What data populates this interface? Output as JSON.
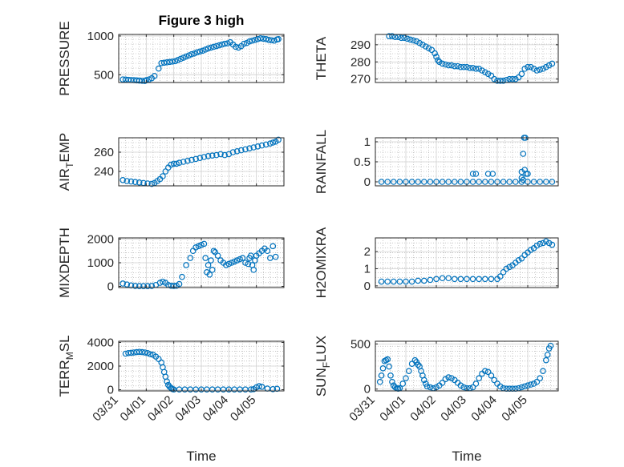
{
  "figure": {
    "title": "Figure 3 high"
  },
  "colors": {
    "marker": "#0072BD",
    "axis": "#262626",
    "grid": "#a6a6a6"
  },
  "x_ticks": [
    "03/31",
    "04/01",
    "04/02",
    "04/03",
    "04/04",
    "04/05"
  ],
  "chart_data": [
    {
      "type": "scatter",
      "panel": "pressure",
      "title": "Figure 3 high",
      "ylabel": "PRESSURE",
      "xlabel": "",
      "ylim": [
        400,
        1020
      ],
      "yticks": [
        500,
        1000
      ],
      "ytick_labels": [
        "500",
        "1000"
      ],
      "x": [
        0.15,
        0.25,
        0.35,
        0.45,
        0.55,
        0.65,
        0.75,
        0.85,
        0.95,
        1.0,
        1.1,
        1.2,
        1.3,
        1.45,
        1.55,
        1.65,
        1.75,
        1.85,
        1.95,
        2.05,
        2.15,
        2.25,
        2.35,
        2.45,
        2.55,
        2.65,
        2.75,
        2.85,
        2.95,
        3.05,
        3.15,
        3.25,
        3.35,
        3.45,
        3.55,
        3.65,
        3.75,
        3.85,
        3.95,
        4.05,
        4.15,
        4.25,
        4.35,
        4.45,
        4.55,
        4.65,
        4.75,
        4.85,
        4.95,
        5.05,
        5.15,
        5.25,
        5.35,
        5.45,
        5.55,
        5.65,
        5.75,
        5.8
      ],
      "y": [
        440,
        438,
        435,
        432,
        430,
        428,
        425,
        422,
        420,
        430,
        440,
        455,
        485,
        580,
        650,
        655,
        660,
        665,
        670,
        675,
        690,
        705,
        720,
        735,
        750,
        765,
        775,
        790,
        800,
        810,
        825,
        840,
        850,
        860,
        870,
        880,
        890,
        900,
        905,
        920,
        890,
        860,
        850,
        870,
        900,
        910,
        930,
        940,
        950,
        960,
        970,
        965,
        960,
        950,
        945,
        940,
        955,
        960
      ],
      "series": [
        {
          "name": "PRESSURE",
          "values": []
        }
      ],
      "grid": true
    },
    {
      "type": "scatter",
      "panel": "theta",
      "ylabel": "THETA",
      "xlabel": "",
      "ylim": [
        268,
        296
      ],
      "yticks": [
        270,
        280,
        290
      ],
      "ytick_labels": [
        "270",
        "280",
        "290"
      ],
      "x": [
        0.45,
        0.55,
        0.65,
        0.75,
        0.85,
        0.95,
        1.05,
        1.15,
        1.25,
        1.35,
        1.45,
        1.55,
        1.65,
        1.75,
        1.85,
        1.95,
        2.0,
        2.05,
        2.1,
        2.2,
        2.3,
        2.4,
        2.5,
        2.6,
        2.7,
        2.8,
        2.9,
        3.0,
        3.1,
        3.2,
        3.3,
        3.4,
        3.5,
        3.6,
        3.7,
        3.8,
        3.9,
        4.0,
        4.1,
        4.2,
        4.3,
        4.4,
        4.5,
        4.6,
        4.7,
        4.8,
        4.9,
        5.0,
        5.1,
        5.2,
        5.3,
        5.4,
        5.5,
        5.6,
        5.7,
        5.8
      ],
      "y": [
        295,
        295,
        294.5,
        294.5,
        294,
        294,
        293.5,
        293,
        292.5,
        292,
        291,
        290,
        289,
        288,
        287,
        285,
        283,
        281,
        280,
        279,
        278.5,
        278,
        278,
        277.5,
        277.5,
        277,
        277,
        277,
        276.5,
        276.5,
        276,
        276,
        275,
        274,
        273,
        272,
        270,
        269,
        269,
        269,
        269.5,
        270,
        270,
        270,
        271,
        273,
        276,
        277,
        277,
        276,
        275,
        275.5,
        276,
        277,
        278,
        279
      ],
      "grid": true
    },
    {
      "type": "scatter",
      "panel": "air_temp",
      "ylabel": "AIR_TEMP",
      "ylabel_display": {
        "main": "AIR",
        "sub": "T",
        "rest": "EMP"
      },
      "xlabel": "",
      "ylim": [
        225,
        275
      ],
      "yticks": [
        240,
        260
      ],
      "ytick_labels": [
        "240",
        "260"
      ],
      "x": [
        0.15,
        0.3,
        0.45,
        0.6,
        0.75,
        0.9,
        1.05,
        1.2,
        1.3,
        1.4,
        1.5,
        1.6,
        1.7,
        1.8,
        1.9,
        2.0,
        2.1,
        2.2,
        2.35,
        2.5,
        2.65,
        2.8,
        2.95,
        3.1,
        3.25,
        3.4,
        3.55,
        3.7,
        3.85,
        4.0,
        4.15,
        4.3,
        4.45,
        4.6,
        4.75,
        4.9,
        5.05,
        5.2,
        5.35,
        5.5,
        5.6,
        5.7,
        5.8
      ],
      "y": [
        231,
        230,
        229.5,
        229,
        228.5,
        228,
        227.5,
        227,
        228,
        230,
        232,
        235,
        240,
        244,
        247,
        248,
        248,
        249,
        250,
        251,
        252,
        253,
        254,
        255,
        256,
        256.5,
        257,
        258,
        257,
        258,
        260,
        261,
        262,
        263,
        264,
        265,
        266,
        267,
        268,
        269,
        270,
        271,
        273
      ],
      "grid": true
    },
    {
      "type": "scatter",
      "panel": "rainfall",
      "ylabel": "RAINFALL",
      "xlabel": "",
      "ylim": [
        -0.1,
        1.1
      ],
      "yticks": [
        0,
        0.5,
        1
      ],
      "ytick_labels": [
        "0",
        "0.5",
        "1"
      ],
      "x": [
        0.2,
        0.4,
        0.6,
        0.8,
        1.0,
        1.2,
        1.4,
        1.6,
        1.8,
        2.0,
        2.2,
        2.4,
        2.6,
        2.8,
        3.0,
        3.2,
        3.4,
        3.6,
        3.8,
        4.0,
        4.2,
        4.4,
        4.6,
        4.8,
        5.0,
        5.2,
        5.4,
        5.6,
        5.8,
        3.2,
        3.3,
        3.7,
        3.85,
        4.8,
        4.9,
        4.85,
        4.92,
        4.88,
        4.95,
        5.0,
        4.8,
        4.85
      ],
      "y": [
        0,
        0,
        0,
        0,
        0,
        0,
        0,
        0,
        0,
        0,
        0,
        0,
        0,
        0,
        0,
        0,
        0,
        0,
        0,
        0,
        0,
        0,
        0,
        0,
        0,
        0,
        0,
        0,
        0,
        0.2,
        0.2,
        0.2,
        0.2,
        0.25,
        0.3,
        0.7,
        1.1,
        1.1,
        0.2,
        0.2,
        0.1,
        0.05
      ],
      "grid": true
    },
    {
      "type": "scatter",
      "panel": "mixdepth",
      "ylabel": "MIXDEPTH",
      "xlabel": "",
      "ylim": [
        -50,
        2050
      ],
      "yticks": [
        0,
        1000,
        2000
      ],
      "ytick_labels": [
        "0",
        "1000",
        "2000"
      ],
      "x": [
        0.15,
        0.3,
        0.45,
        0.6,
        0.75,
        0.9,
        1.05,
        1.2,
        1.35,
        1.5,
        1.6,
        1.7,
        1.8,
        1.9,
        2.0,
        2.1,
        2.2,
        2.3,
        2.45,
        2.6,
        2.7,
        2.8,
        2.9,
        3.0,
        3.1,
        3.15,
        3.2,
        3.25,
        3.3,
        3.35,
        3.4,
        3.45,
        3.5,
        3.6,
        3.7,
        3.8,
        3.9,
        4.0,
        4.1,
        4.2,
        4.3,
        4.4,
        4.5,
        4.6,
        4.7,
        4.75,
        4.8,
        4.85,
        4.9,
        4.95,
        5.0,
        5.1,
        5.2,
        5.3,
        5.4,
        5.5,
        5.6,
        5.7
      ],
      "y": [
        120,
        80,
        40,
        20,
        10,
        10,
        10,
        20,
        60,
        150,
        200,
        150,
        60,
        30,
        20,
        30,
        100,
        400,
        900,
        1200,
        1500,
        1650,
        1700,
        1750,
        1800,
        1200,
        600,
        900,
        500,
        1100,
        700,
        1500,
        1450,
        1300,
        1100,
        1000,
        900,
        950,
        1000,
        1050,
        1100,
        1150,
        1200,
        1000,
        950,
        1200,
        1300,
        900,
        700,
        1100,
        1300,
        1400,
        1500,
        1600,
        1500,
        1200,
        1700,
        1250
      ],
      "grid": true
    },
    {
      "type": "scatter",
      "panel": "h2omixra",
      "ylabel": "H2OMIXRA",
      "xlabel": "",
      "ylim": [
        -0.1,
        2.8
      ],
      "yticks": [
        0,
        1,
        2
      ],
      "ytick_labels": [
        "0",
        "1",
        "2"
      ],
      "x": [
        0.2,
        0.4,
        0.6,
        0.8,
        1.0,
        1.2,
        1.4,
        1.6,
        1.8,
        2.0,
        2.2,
        2.4,
        2.6,
        2.8,
        3.0,
        3.2,
        3.4,
        3.6,
        3.8,
        4.0,
        4.1,
        4.2,
        4.3,
        4.4,
        4.5,
        4.6,
        4.7,
        4.8,
        4.9,
        5.0,
        5.1,
        5.2,
        5.3,
        5.4,
        5.5,
        5.6,
        5.7,
        5.8
      ],
      "y": [
        0.25,
        0.25,
        0.25,
        0.25,
        0.25,
        0.25,
        0.3,
        0.3,
        0.35,
        0.4,
        0.45,
        0.45,
        0.4,
        0.4,
        0.4,
        0.4,
        0.4,
        0.4,
        0.4,
        0.4,
        0.55,
        0.8,
        1.0,
        1.1,
        1.2,
        1.35,
        1.5,
        1.6,
        1.8,
        1.95,
        2.1,
        2.2,
        2.35,
        2.45,
        2.5,
        2.6,
        2.5,
        2.4
      ],
      "grid": true
    },
    {
      "type": "scatter",
      "panel": "terr_msl",
      "ylabel": "TERR_MSL",
      "ylabel_display": {
        "main": "TERR",
        "sub": "M",
        "rest": "SL"
      },
      "xlabel": "Time",
      "ylim": [
        -100,
        4100
      ],
      "yticks": [
        0,
        2000,
        4000
      ],
      "ytick_labels": [
        "0",
        "2000",
        "4000"
      ],
      "xtick_labels": [
        "03/31",
        "04/01",
        "04/02",
        "04/03",
        "04/04",
        "04/05"
      ],
      "x": [
        0.25,
        0.35,
        0.45,
        0.55,
        0.65,
        0.75,
        0.85,
        0.95,
        1.05,
        1.15,
        1.25,
        1.35,
        1.45,
        1.55,
        1.6,
        1.65,
        1.7,
        1.75,
        1.8,
        1.85,
        1.9,
        1.95,
        2.0,
        2.2,
        2.4,
        2.6,
        2.8,
        3.0,
        3.2,
        3.4,
        3.6,
        3.8,
        4.0,
        4.2,
        4.4,
        4.6,
        4.8,
        4.9,
        5.0,
        5.1,
        5.2,
        5.4,
        5.6,
        5.75
      ],
      "y": [
        3050,
        3100,
        3120,
        3150,
        3180,
        3200,
        3180,
        3150,
        3100,
        3000,
        2950,
        2800,
        2600,
        2300,
        1900,
        1500,
        1100,
        700,
        400,
        250,
        150,
        60,
        20,
        20,
        20,
        20,
        20,
        20,
        20,
        20,
        20,
        20,
        20,
        20,
        20,
        20,
        20,
        50,
        200,
        300,
        250,
        100,
        50,
        80
      ],
      "grid": true
    },
    {
      "type": "scatter",
      "panel": "sun_flux",
      "ylabel": "SUN_FLUX",
      "ylabel_display": {
        "main": "SUN",
        "sub": "F",
        "rest": "LUX"
      },
      "xlabel": "Time",
      "ylim": [
        -20,
        530
      ],
      "yticks": [
        0,
        500
      ],
      "ytick_labels": [
        "0",
        "500"
      ],
      "xtick_labels": [
        "03/31",
        "04/01",
        "04/02",
        "04/03",
        "04/04",
        "04/05"
      ],
      "x": [
        0.15,
        0.2,
        0.25,
        0.3,
        0.35,
        0.4,
        0.45,
        0.5,
        0.55,
        0.6,
        0.65,
        0.7,
        0.75,
        0.8,
        0.9,
        1.0,
        1.1,
        1.2,
        1.3,
        1.35,
        1.4,
        1.45,
        1.5,
        1.55,
        1.6,
        1.65,
        1.7,
        1.8,
        1.9,
        2.0,
        2.1,
        2.2,
        2.3,
        2.4,
        2.5,
        2.6,
        2.7,
        2.8,
        2.9,
        3.0,
        3.1,
        3.2,
        3.3,
        3.4,
        3.5,
        3.6,
        3.7,
        3.8,
        3.9,
        4.0,
        4.1,
        4.2,
        4.3,
        4.4,
        4.5,
        4.6,
        4.7,
        4.8,
        4.9,
        5.0,
        5.1,
        5.2,
        5.3,
        5.4,
        5.5,
        5.6,
        5.65,
        5.7,
        5.75
      ],
      "y": [
        80,
        150,
        230,
        310,
        320,
        330,
        250,
        150,
        80,
        40,
        20,
        10,
        5,
        10,
        60,
        120,
        200,
        280,
        320,
        300,
        270,
        250,
        200,
        150,
        100,
        60,
        30,
        20,
        10,
        20,
        40,
        70,
        110,
        130,
        120,
        100,
        70,
        40,
        20,
        10,
        10,
        20,
        60,
        120,
        170,
        200,
        190,
        150,
        100,
        60,
        30,
        10,
        5,
        5,
        5,
        5,
        10,
        20,
        30,
        40,
        50,
        60,
        80,
        120,
        200,
        320,
        380,
        450,
        480
      ],
      "grid": true
    }
  ]
}
